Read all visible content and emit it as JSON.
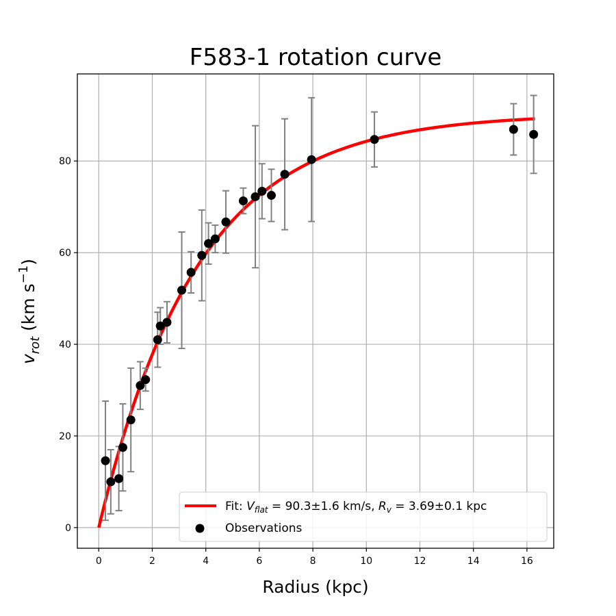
{
  "chart_data": {
    "type": "scatter",
    "title": "F583-1 rotation curve",
    "xlabel": "Radius (kpc)",
    "ylabel": {
      "v": "v",
      "sub": "rot",
      "units_pre": " (km s",
      "sup": "−1",
      "units_post": ")"
    },
    "xlim": [
      -0.8,
      17.0
    ],
    "ylim": [
      -4.5,
      99.0
    ],
    "xticks": [
      0,
      2,
      4,
      6,
      8,
      10,
      12,
      14,
      16
    ],
    "yticks": [
      0,
      20,
      40,
      60,
      80
    ],
    "grid": true,
    "legend_position": "lower-right",
    "colors": {
      "fit": "#ff0000",
      "points": "#000000",
      "errorbars": "#808080"
    },
    "series": [
      {
        "name": "Observations",
        "kind": "scatter_errorbar",
        "points": [
          {
            "x": 0.25,
            "y": 14.6,
            "err": 13.0
          },
          {
            "x": 0.45,
            "y": 10.0,
            "err": 7.0
          },
          {
            "x": 0.75,
            "y": 10.7,
            "err": 7.0
          },
          {
            "x": 0.9,
            "y": 17.5,
            "err": 9.5
          },
          {
            "x": 1.2,
            "y": 23.5,
            "err": 11.3
          },
          {
            "x": 1.55,
            "y": 31.0,
            "err": 5.2
          },
          {
            "x": 1.75,
            "y": 32.3,
            "err": 2.5
          },
          {
            "x": 2.2,
            "y": 41.0,
            "err": 6.0
          },
          {
            "x": 2.3,
            "y": 44.0,
            "err": 4.0
          },
          {
            "x": 2.55,
            "y": 44.8,
            "err": 4.5
          },
          {
            "x": 3.1,
            "y": 51.8,
            "err": 12.7
          },
          {
            "x": 3.45,
            "y": 55.7,
            "err": 4.5
          },
          {
            "x": 3.85,
            "y": 59.4,
            "err": 9.9
          },
          {
            "x": 4.1,
            "y": 62.0,
            "err": 4.5
          },
          {
            "x": 4.35,
            "y": 63.0,
            "err": 3.0
          },
          {
            "x": 4.75,
            "y": 66.7,
            "err": 6.8
          },
          {
            "x": 5.4,
            "y": 71.3,
            "err": 2.8
          },
          {
            "x": 5.85,
            "y": 72.2,
            "err": 15.5
          },
          {
            "x": 6.1,
            "y": 73.4,
            "err": 6.0
          },
          {
            "x": 6.45,
            "y": 72.5,
            "err": 5.7
          },
          {
            "x": 6.95,
            "y": 77.1,
            "err": 12.1
          },
          {
            "x": 7.95,
            "y": 80.3,
            "err": 13.5
          },
          {
            "x": 10.3,
            "y": 84.7,
            "err": 6.0
          },
          {
            "x": 15.5,
            "y": 86.9,
            "err": 5.6
          },
          {
            "x": 16.25,
            "y": 85.8,
            "err": 8.5
          }
        ]
      },
      {
        "name": "Fit",
        "kind": "line",
        "model": "v(r) = Vflat * (1 - exp(-r / Rv))",
        "params": {
          "Vflat": 90.3,
          "Rv": 3.69
        },
        "x_range": [
          0,
          16.3
        ]
      }
    ],
    "legend": [
      {
        "key": "fit",
        "prefix": "Fit: ",
        "v_sym": "V",
        "v_sub": "flat",
        "v_text": " = 90.3±1.6 km/s, ",
        "r_sym": "R",
        "r_sub": "v",
        "r_text": " = 3.69±0.1 kpc"
      },
      {
        "key": "obs",
        "label": "Observations"
      }
    ]
  }
}
